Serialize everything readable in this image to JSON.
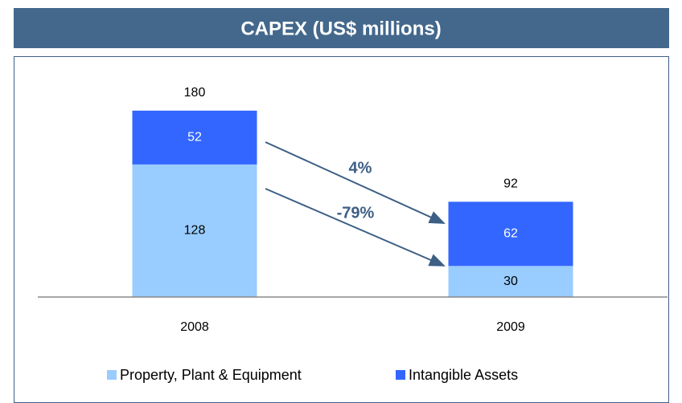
{
  "chart_data": {
    "type": "stacked_bar",
    "title": "CAPEX (US$ millions)",
    "categories": [
      "2008",
      "2009"
    ],
    "series": [
      {
        "name": "Property, Plant & Equipment",
        "color": "#99ccff",
        "values": [
          128,
          30
        ]
      },
      {
        "name": "Intangible Assets",
        "color": "#3366ff",
        "values": [
          52,
          62
        ]
      }
    ],
    "totals": [
      180,
      92
    ],
    "annotations": [
      "4%",
      "-79%"
    ]
  }
}
